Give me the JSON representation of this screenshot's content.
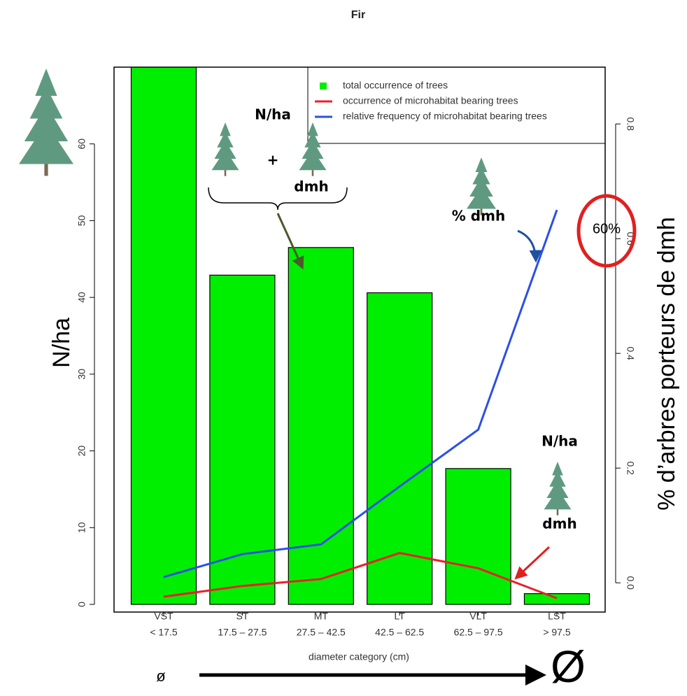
{
  "chart_data": {
    "type": "bar",
    "title": "Fir",
    "categories": [
      "VST",
      "ST",
      "MT",
      "LT",
      "VLT",
      "LST"
    ],
    "category_ranges": [
      "< 17.5",
      "17.5 – 27.5",
      "27.5 – 42.5",
      "42.5 – 62.5",
      "62.5 – 97.5",
      "> 97.5"
    ],
    "x_label": "diameter category (cm)",
    "y_label": "N/ha",
    "y2_label": "% d’arbres porteurs de dmh",
    "ylim": [
      -1,
      70
    ],
    "yticks": [
      0,
      10,
      20,
      30,
      40,
      50,
      60
    ],
    "y2lim": [
      -0.051,
      0.899
    ],
    "y2ticks": [
      0.0,
      {
        "value": 0.2,
        "label": "0.2"
      },
      {
        "value": 0.4,
        "label": "0.4"
      },
      {
        "value": 0.6,
        "label": "0.6"
      },
      {
        "value": 0.8,
        "label": "0.8"
      }
    ],
    "series": [
      {
        "name": "total occurrence of trees",
        "color": "#00ee00",
        "kind": "bar",
        "values": [
          75,
          42.9,
          46.5,
          40.6,
          17.7,
          1.4
        ]
      },
      {
        "name": "occurrence of microhabitat bearing trees",
        "color": "#e8202a",
        "kind": "line",
        "values": [
          1.0,
          2.4,
          3.3,
          6.7,
          4.7,
          0.8
        ]
      },
      {
        "name": "relative frequency of microhabitat bearing trees",
        "color": "#2b4fe8",
        "kind": "line",
        "axis": "y2",
        "values": [
          0.01,
          0.05,
          0.067,
          0.168,
          0.267,
          0.65
        ]
      }
    ],
    "annotations": {
      "stack_label": "N/ha",
      "plus": "+",
      "dmh_label": "dmh",
      "pct_label": "% dmh",
      "circle_label": "60%",
      "lst_label": "N/ha",
      "lst_dmh": "dmh",
      "small_diameter": "ø",
      "large_diameter": "Ø"
    }
  }
}
